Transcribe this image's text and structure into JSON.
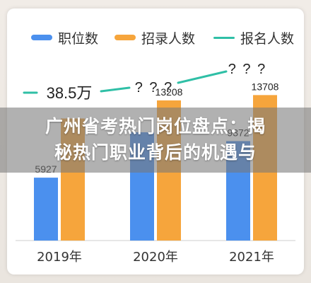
{
  "banner": {
    "line1": "广州省考热门岗位盘点：揭",
    "line2": "秘热门职业背后的机遇与"
  },
  "colors": {
    "positions": "#4b90ee",
    "hires": "#f6a53c",
    "applicants": "#2fbfa6"
  },
  "chart_data": {
    "type": "bar",
    "categories": [
      "2019年",
      "2020年",
      "2021年"
    ],
    "series": [
      {
        "name": "职位数",
        "values": [
          5927,
          10203,
          9372
        ],
        "labels": [
          "5927",
          "",
          "9372"
        ]
      },
      {
        "name": "招录人数",
        "values": [
          11500,
          13208,
          13708
        ],
        "labels": [
          "",
          "13208",
          "13708"
        ]
      },
      {
        "name": "报名人数",
        "labels": [
          "38.5万",
          "? ? ?",
          "? ? ?"
        ]
      }
    ],
    "ylim": [
      0,
      20000
    ],
    "legend_position": "top",
    "grid": false
  }
}
